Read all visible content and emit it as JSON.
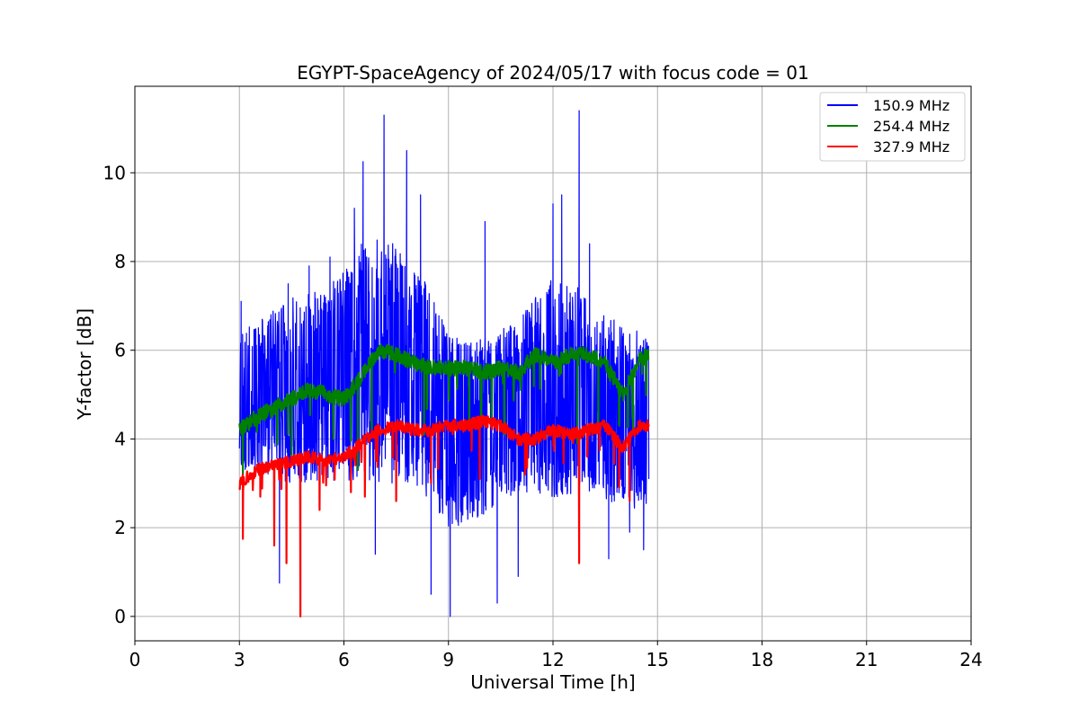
{
  "chart_data": {
    "type": "line",
    "title": "EGYPT-SpaceAgency of 2024/05/17 with focus code = 01",
    "xlabel": "Universal Time [h]",
    "ylabel": "Y-factor [dB]",
    "xlim": [
      0,
      24
    ],
    "ylim": [
      -0.55,
      11.95
    ],
    "xticks": [
      0,
      3,
      6,
      9,
      12,
      15,
      18,
      21,
      24
    ],
    "xtick_labels": [
      "0",
      "3",
      "6",
      "9",
      "12",
      "15",
      "18",
      "21",
      "24"
    ],
    "yticks": [
      0,
      2,
      4,
      6,
      8,
      10
    ],
    "ytick_labels": [
      "0",
      "2",
      "4",
      "6",
      "8",
      "10"
    ],
    "grid": true,
    "legend_position": "top-right",
    "series": [
      {
        "name": "150.9 MHz",
        "color": "#0000ff",
        "x": [
          3.0,
          3.5,
          4.0,
          4.5,
          5.0,
          5.5,
          6.0,
          6.5,
          7.0,
          7.5,
          8.0,
          8.5,
          9.0,
          9.5,
          10.0,
          10.5,
          11.0,
          11.5,
          12.0,
          12.5,
          13.0,
          13.5,
          14.0,
          14.5,
          14.75
        ],
        "values": [
          4.4,
          4.6,
          4.7,
          4.9,
          5.0,
          5.1,
          5.2,
          5.7,
          6.0,
          5.8,
          5.5,
          5.2,
          4.6,
          4.4,
          4.5,
          4.6,
          4.7,
          4.9,
          5.3,
          5.3,
          5.0,
          4.8,
          4.6,
          4.5,
          4.5
        ],
        "spread_low": [
          3.3,
          3.3,
          3.1,
          3.0,
          3.0,
          3.1,
          3.0,
          3.1,
          3.0,
          3.0,
          3.0,
          2.6,
          2.0,
          2.0,
          2.3,
          2.6,
          2.8,
          2.8,
          2.7,
          2.7,
          2.8,
          2.6,
          2.5,
          2.4,
          2.5
        ],
        "spread_high": [
          6.4,
          6.7,
          6.9,
          7.2,
          7.3,
          7.4,
          7.8,
          8.4,
          8.6,
          8.4,
          8.0,
          7.3,
          6.5,
          6.2,
          6.3,
          6.5,
          6.6,
          7.3,
          7.7,
          7.6,
          7.2,
          6.8,
          6.6,
          6.4,
          6.2
        ],
        "spikes": [
          {
            "x": 3.05,
            "y": 7.1
          },
          {
            "x": 4.15,
            "y": 0.75
          },
          {
            "x": 4.4,
            "y": 7.5
          },
          {
            "x": 5.0,
            "y": 7.9
          },
          {
            "x": 5.6,
            "y": 8.1
          },
          {
            "x": 6.3,
            "y": 9.2
          },
          {
            "x": 6.55,
            "y": 10.25
          },
          {
            "x": 6.9,
            "y": 1.4
          },
          {
            "x": 7.15,
            "y": 11.3
          },
          {
            "x": 7.8,
            "y": 10.5
          },
          {
            "x": 8.2,
            "y": 9.5
          },
          {
            "x": 8.5,
            "y": 0.5
          },
          {
            "x": 9.05,
            "y": 0.0
          },
          {
            "x": 10.05,
            "y": 8.9
          },
          {
            "x": 10.4,
            "y": 0.3
          },
          {
            "x": 11.0,
            "y": 0.9
          },
          {
            "x": 12.0,
            "y": 9.3
          },
          {
            "x": 12.25,
            "y": 9.5
          },
          {
            "x": 12.75,
            "y": 11.4
          },
          {
            "x": 13.05,
            "y": 8.4
          },
          {
            "x": 13.6,
            "y": 1.3
          },
          {
            "x": 14.2,
            "y": 1.9
          },
          {
            "x": 14.6,
            "y": 1.5
          }
        ]
      },
      {
        "name": "254.4 MHz",
        "color": "#008000",
        "x": [
          3.0,
          3.5,
          4.0,
          4.5,
          5.0,
          5.5,
          6.0,
          6.5,
          7.0,
          7.5,
          8.0,
          8.5,
          9.0,
          9.5,
          10.0,
          10.5,
          11.0,
          11.5,
          12.0,
          12.5,
          13.0,
          13.5,
          14.0,
          14.5,
          14.75
        ],
        "values": [
          4.2,
          4.5,
          4.7,
          4.9,
          5.1,
          5.0,
          4.9,
          5.4,
          6.0,
          5.9,
          5.7,
          5.6,
          5.6,
          5.6,
          5.5,
          5.6,
          5.5,
          5.9,
          5.7,
          5.9,
          5.9,
          5.7,
          5.0,
          5.8,
          5.9
        ],
        "spikes": [
          {
            "x": 3.1,
            "y": 3.2
          },
          {
            "x": 4.5,
            "y": 3.6
          },
          {
            "x": 5.7,
            "y": 4.0
          },
          {
            "x": 6.4,
            "y": 3.3
          },
          {
            "x": 6.8,
            "y": 4.2
          },
          {
            "x": 8.3,
            "y": 4.1
          },
          {
            "x": 9.6,
            "y": 4.4
          },
          {
            "x": 10.6,
            "y": 4.1
          },
          {
            "x": 12.7,
            "y": 3.9
          },
          {
            "x": 13.3,
            "y": 4.3
          },
          {
            "x": 13.9,
            "y": 4.3
          },
          {
            "x": 14.3,
            "y": 4.2
          }
        ]
      },
      {
        "name": "327.9 MHz",
        "color": "#ff0000",
        "x": [
          3.0,
          3.5,
          4.0,
          4.5,
          5.0,
          5.5,
          6.0,
          6.5,
          7.0,
          7.5,
          8.0,
          8.5,
          9.0,
          9.5,
          10.0,
          10.5,
          11.0,
          11.5,
          12.0,
          12.5,
          13.0,
          13.5,
          14.0,
          14.5,
          14.75
        ],
        "values": [
          3.0,
          3.3,
          3.4,
          3.5,
          3.6,
          3.5,
          3.6,
          3.9,
          4.2,
          4.3,
          4.2,
          4.2,
          4.3,
          4.3,
          4.4,
          4.3,
          4.0,
          4.0,
          4.2,
          4.1,
          4.2,
          4.3,
          3.8,
          4.3,
          4.3
        ],
        "spikes": [
          {
            "x": 3.1,
            "y": 1.75
          },
          {
            "x": 3.6,
            "y": 2.7
          },
          {
            "x": 4.0,
            "y": 1.6
          },
          {
            "x": 4.35,
            "y": 1.2
          },
          {
            "x": 4.75,
            "y": 0.0
          },
          {
            "x": 5.3,
            "y": 2.4
          },
          {
            "x": 6.2,
            "y": 2.8
          },
          {
            "x": 6.6,
            "y": 2.7
          },
          {
            "x": 7.5,
            "y": 2.6
          },
          {
            "x": 8.5,
            "y": 3.0
          },
          {
            "x": 9.9,
            "y": 3.1
          },
          {
            "x": 11.2,
            "y": 3.2
          },
          {
            "x": 12.75,
            "y": 1.2
          },
          {
            "x": 13.9,
            "y": 2.9
          },
          {
            "x": 14.2,
            "y": 2.6
          }
        ]
      }
    ]
  }
}
